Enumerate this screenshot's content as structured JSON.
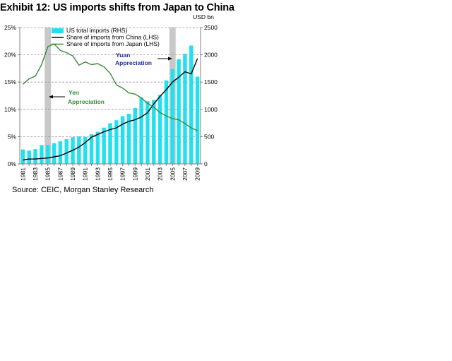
{
  "title": "Exhibit 12: US imports shifts from Japan to China",
  "source": "Source: CEIC, Morgan Stanley Research",
  "chart_data": {
    "type": "bar+line",
    "title": "Exhibit 12: US imports shifts from Japan to China",
    "y_left": {
      "ticks": [
        "0%",
        "5%",
        "10%",
        "15%",
        "20%",
        "25%"
      ],
      "ylim": [
        0,
        25
      ]
    },
    "y_right": {
      "unit_label": "USD bn",
      "ticks": [
        "0",
        "500",
        "1000",
        "1500",
        "2000",
        "2500"
      ],
      "ylim": [
        0,
        2500
      ]
    },
    "x_tick_labels": [
      "1981",
      "1983",
      "1985",
      "1987",
      "1989",
      "1991",
      "1993",
      "1995",
      "1997",
      "1999",
      "2001",
      "2003",
      "2005",
      "2007",
      "2009"
    ],
    "years": [
      1981,
      1982,
      1983,
      1984,
      1985,
      1986,
      1987,
      1988,
      1989,
      1990,
      1991,
      1992,
      1993,
      1994,
      1995,
      1996,
      1997,
      1998,
      1999,
      2000,
      2001,
      2002,
      2003,
      2004,
      2005,
      2006,
      2007,
      2008,
      2009
    ],
    "series": [
      {
        "name": "US total imports (RHS)",
        "type": "bar",
        "axis": "right",
        "color": "#22e0ee",
        "values": [
          265,
          245,
          270,
          345,
          350,
          380,
          415,
          455,
          490,
          505,
          495,
          545,
          590,
          665,
          745,
          800,
          875,
          920,
          1025,
          1220,
          1150,
          1170,
          1265,
          1530,
          1740,
          1920,
          2020,
          2170,
          1600
        ]
      },
      {
        "name": "Share of imports from China (LHS)",
        "type": "line",
        "axis": "left",
        "color": "#000000",
        "values": [
          0.7,
          0.9,
          0.9,
          1.0,
          1.1,
          1.3,
          1.5,
          2.0,
          2.5,
          3.1,
          3.9,
          4.9,
          5.4,
          5.9,
          6.3,
          6.6,
          7.3,
          7.8,
          8.1,
          8.6,
          9.4,
          11.0,
          12.4,
          13.6,
          15.0,
          15.9,
          16.9,
          16.5,
          19.3
        ]
      },
      {
        "name": "Share of imports from Japan (LHS)",
        "type": "line",
        "axis": "left",
        "color": "#3a8a3a",
        "values": [
          14.6,
          15.6,
          16.1,
          18.2,
          21.5,
          22.0,
          20.8,
          20.4,
          19.8,
          18.1,
          18.7,
          18.2,
          18.4,
          17.8,
          16.6,
          14.5,
          13.9,
          13.0,
          12.8,
          12.1,
          11.1,
          10.4,
          9.4,
          8.8,
          8.3,
          8.1,
          7.4,
          6.6,
          6.1
        ]
      }
    ],
    "shaded_periods": [
      {
        "name": "yen-appreciation",
        "from": 1985,
        "to": 1985
      },
      {
        "name": "yuan-appreciation",
        "from": 2005,
        "to": 2005
      }
    ],
    "annotations": [
      {
        "name": "yen",
        "text_lines": [
          "Yen",
          "Appreciation"
        ],
        "color": "#3a8a3a"
      },
      {
        "name": "yuan",
        "text_lines": [
          "Yuan",
          "Appreciation"
        ],
        "color": "#1f2f8f"
      }
    ],
    "legend_position": "top-left"
  },
  "colors": {
    "grid": "#b08ab0",
    "shade": "#c8c8c8",
    "axis": "#808080"
  }
}
